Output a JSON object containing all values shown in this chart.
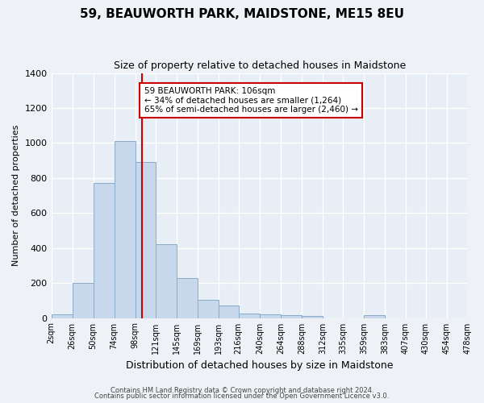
{
  "title": "59, BEAUWORTH PARK, MAIDSTONE, ME15 8EU",
  "subtitle": "Size of property relative to detached houses in Maidstone",
  "xlabel": "Distribution of detached houses by size in Maidstone",
  "ylabel": "Number of detached properties",
  "bar_edges": [
    2,
    26,
    50,
    74,
    98,
    121,
    145,
    169,
    193,
    216,
    240,
    264,
    288,
    312,
    335,
    359,
    383,
    407,
    430,
    454,
    478
  ],
  "bar_heights": [
    20,
    200,
    770,
    1010,
    890,
    420,
    230,
    105,
    70,
    25,
    20,
    15,
    10,
    0,
    0,
    15,
    0,
    0,
    0,
    0
  ],
  "bar_color": "#c8d8ec",
  "bar_edge_color": "#8aaac8",
  "x_tick_labels": [
    "2sqm",
    "26sqm",
    "50sqm",
    "74sqm",
    "98sqm",
    "121sqm",
    "145sqm",
    "169sqm",
    "193sqm",
    "216sqm",
    "240sqm",
    "264sqm",
    "288sqm",
    "312sqm",
    "335sqm",
    "359sqm",
    "383sqm",
    "407sqm",
    "430sqm",
    "454sqm",
    "478sqm"
  ],
  "ylim": [
    0,
    1400
  ],
  "yticks": [
    0,
    200,
    400,
    600,
    800,
    1000,
    1200,
    1400
  ],
  "vline_x": 106,
  "vline_color": "#cc0000",
  "annotation_text": "59 BEAUWORTH PARK: 106sqm\n← 34% of detached houses are smaller (1,264)\n65% of semi-detached houses are larger (2,460) →",
  "annotation_box_color": "#ffffff",
  "annotation_box_edgecolor": "#cc0000",
  "footer_line1": "Contains HM Land Registry data © Crown copyright and database right 2024.",
  "footer_line2": "Contains public sector information licensed under the Open Government Licence v3.0.",
  "background_color": "#eef2f7",
  "grid_color": "#ffffff",
  "plot_bg_color": "#e8eef5"
}
